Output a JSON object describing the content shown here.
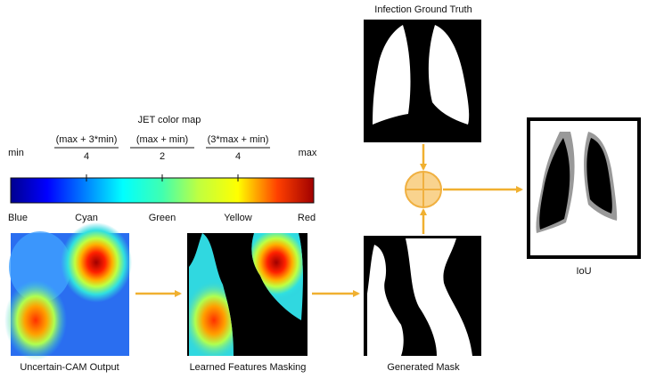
{
  "colormap": {
    "title": "JET color map",
    "min": "min",
    "max": "max",
    "fractions": [
      {
        "numerator": "(max + 3*min)",
        "denominator": "4"
      },
      {
        "numerator": "(max + min)",
        "denominator": "2"
      },
      {
        "numerator": "(3*max + min)",
        "denominator": "4"
      }
    ],
    "colors": [
      "Blue",
      "Cyan",
      "Green",
      "Yellow",
      "Red"
    ]
  },
  "panels": {
    "cam": "Uncertain-CAM Output",
    "masking": "Learned Features Masking",
    "mask": "Generated Mask",
    "ground_truth": "Infection Ground Truth",
    "iou": "IoU"
  }
}
